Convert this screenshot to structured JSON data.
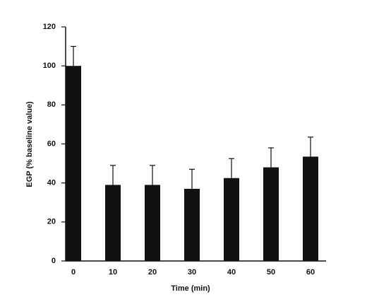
{
  "chart_data": {
    "type": "bar",
    "x_label": "Time (min)",
    "y_label": "EGP (% baseline value)",
    "categories": [
      "0",
      "10",
      "20",
      "30",
      "40",
      "50",
      "60"
    ],
    "values": [
      100,
      39,
      39,
      37,
      42.5,
      48,
      53.5
    ],
    "errors": [
      10,
      10,
      10,
      10,
      10,
      10,
      10
    ],
    "color": "#111111",
    "ylim": [
      0,
      120
    ],
    "yticks": [
      0,
      20,
      40,
      60,
      80,
      100,
      120
    ],
    "grid": false
  }
}
